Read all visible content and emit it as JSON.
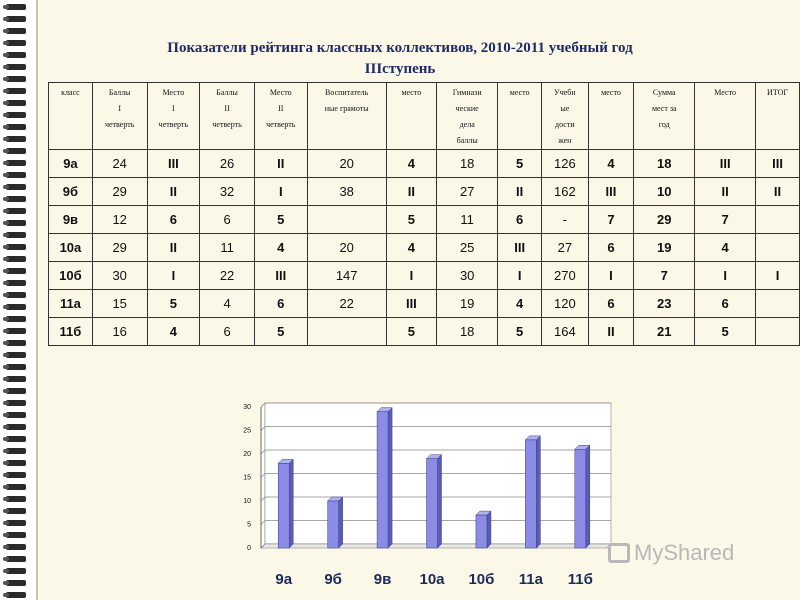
{
  "title_line1": "Показатели рейтинга классных коллективов, 2010-2011 учебный год",
  "title_line2": "IIIступень",
  "table": {
    "headers": [
      [
        "класс"
      ],
      [
        "Баллы",
        "I",
        "четверть"
      ],
      [
        "Место",
        "I",
        "четверть"
      ],
      [
        "Баллы",
        "II",
        "четверть"
      ],
      [
        "Место",
        "II",
        "четверть"
      ],
      [
        "Воспитатель",
        "ные грамоты"
      ],
      [
        "место"
      ],
      [
        "Гимнази",
        "ческие",
        "дела",
        "баллы"
      ],
      [
        "место"
      ],
      [
        "Учебн",
        "ые",
        "дости",
        "жен"
      ],
      [
        "место"
      ],
      [
        "Сумма",
        "мест за",
        "год"
      ],
      [
        "Место"
      ],
      [
        "ИТОГ"
      ]
    ],
    "rows": [
      [
        "9а",
        "24",
        "III",
        "26",
        "II",
        "20",
        "4",
        "18",
        "5",
        "126",
        "4",
        "18",
        "III",
        "III"
      ],
      [
        "9б",
        "29",
        "II",
        "32",
        "I",
        "38",
        "II",
        "27",
        "II",
        "162",
        "III",
        "10",
        "II",
        "II"
      ],
      [
        "9в",
        "12",
        "6",
        "6",
        "5",
        "",
        "5",
        "11",
        "6",
        "-",
        "7",
        "29",
        "7",
        ""
      ],
      [
        "10а",
        "29",
        "II",
        "11",
        "4",
        "20",
        "4",
        "25",
        "III",
        "27",
        "6",
        "19",
        "4",
        ""
      ],
      [
        "10б",
        "30",
        "I",
        "22",
        "III",
        "147",
        "I",
        "30",
        "I",
        "270",
        "I",
        "7",
        "I",
        "I"
      ],
      [
        "11а",
        "15",
        "5",
        "4",
        "6",
        "22",
        "III",
        "19",
        "4",
        "120",
        "6",
        "23",
        "6",
        ""
      ],
      [
        "11б",
        "16",
        "4",
        "6",
        "5",
        "",
        "5",
        "18",
        "5",
        "164",
        "II",
        "21",
        "5",
        ""
      ]
    ]
  },
  "chart_data": {
    "type": "bar",
    "categories": [
      "9а",
      "9б",
      "9в",
      "10а",
      "10б",
      "11а",
      "11б"
    ],
    "values": [
      18,
      10,
      29,
      19,
      7,
      23,
      21
    ],
    "ylim": [
      0,
      30
    ],
    "yticks": [
      "0",
      "5",
      "10",
      "15",
      "20",
      "25",
      "30"
    ],
    "grid": true,
    "bar_color": "#8a8ce6"
  },
  "watermark": "MyShared"
}
